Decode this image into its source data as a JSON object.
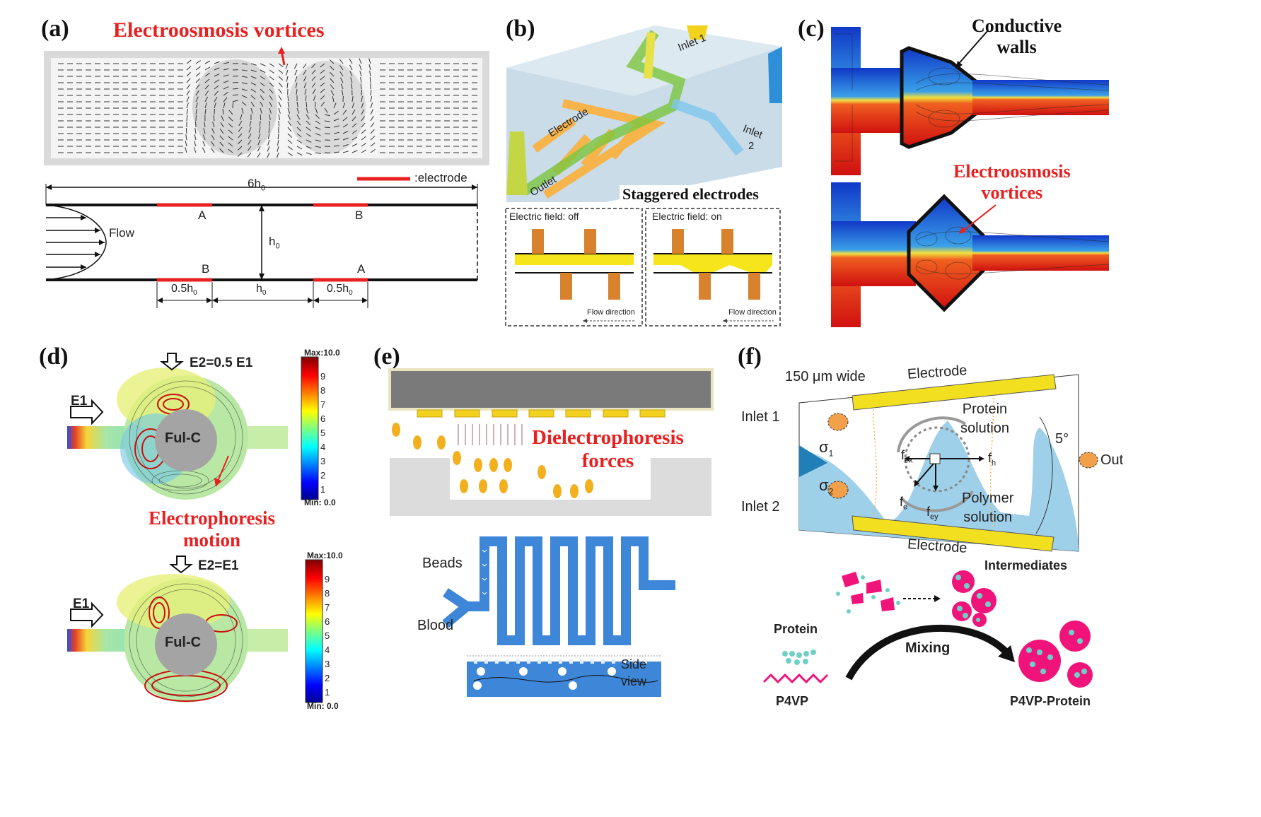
{
  "panels": {
    "a": {
      "letter": "(a)",
      "title": "Electroosmosis vortices",
      "legend": ":electrode",
      "length": "6h",
      "length_sub": "0",
      "height": "h",
      "height_sub": "0",
      "flow": "Flow",
      "top_electrodes": [
        "A",
        "B"
      ],
      "bottom_electrodes": [
        "B",
        "A"
      ],
      "dim_electrode": "0.5h",
      "dim_gap": "h",
      "sub0": "0"
    },
    "b": {
      "letter": "(b)",
      "inlet1": "Inlet 1",
      "inlet2_line1": "Inlet",
      "inlet2_line2": "2",
      "electrode": "Electrode",
      "outlet": "Outlet",
      "caption": "Staggered electrodes",
      "off": "Electric field: off",
      "on": "Electric field: on",
      "flow_dir": "Flow direction"
    },
    "c": {
      "letter": "(c)",
      "title_top": "Conductive\nwalls",
      "title_bottom": "Electroosmosis\nvortices"
    },
    "d": {
      "letter": "(d)",
      "e1": "E1",
      "e2_top": "E2=0.5 E1",
      "e2_bottom": "E2=E1",
      "core": "Ful-C",
      "title": "Electrophoresis\nmotion",
      "colorbar_max": "Max:10.0",
      "colorbar_min": "Min: 0.0",
      "colorbar_ticks": [
        "9",
        "8",
        "7",
        "6",
        "5",
        "4",
        "3",
        "2",
        "1"
      ]
    },
    "e": {
      "letter": "(e)",
      "title": "Dielectrophoresis\nforces",
      "beads": "Beads",
      "blood": "Blood",
      "side_view": "Side\nview"
    },
    "f": {
      "letter": "(f)",
      "width_label": "150 μm wide",
      "electrode_top": "Electrode",
      "electrode_bottom": "Electrode",
      "inlet1": "Inlet 1",
      "inlet2": "Inlet 2",
      "sigma1": "σ",
      "sigma2": "σ",
      "protein_solution": "Protein\nsolution",
      "polymer_solution": "Polymer\nsolution",
      "angle": "5°",
      "out": "Out",
      "fex": "f",
      "fh": "f",
      "fe": "f",
      "fey": "f",
      "intermediates": "Intermediates",
      "protein": "Protein",
      "p4vp": "P4VP",
      "mixing": "Mixing",
      "p4vp_protein": "P4VP-Protein"
    }
  },
  "colors": {
    "title_red": "#e8201f",
    "electrode_yellow": "#f2e020",
    "fluid_blue": "#9fd0ea",
    "electrode_orange": "#f6b44a",
    "bead_orange": "#f2b01e",
    "channel_blue": "#3d86d8"
  }
}
